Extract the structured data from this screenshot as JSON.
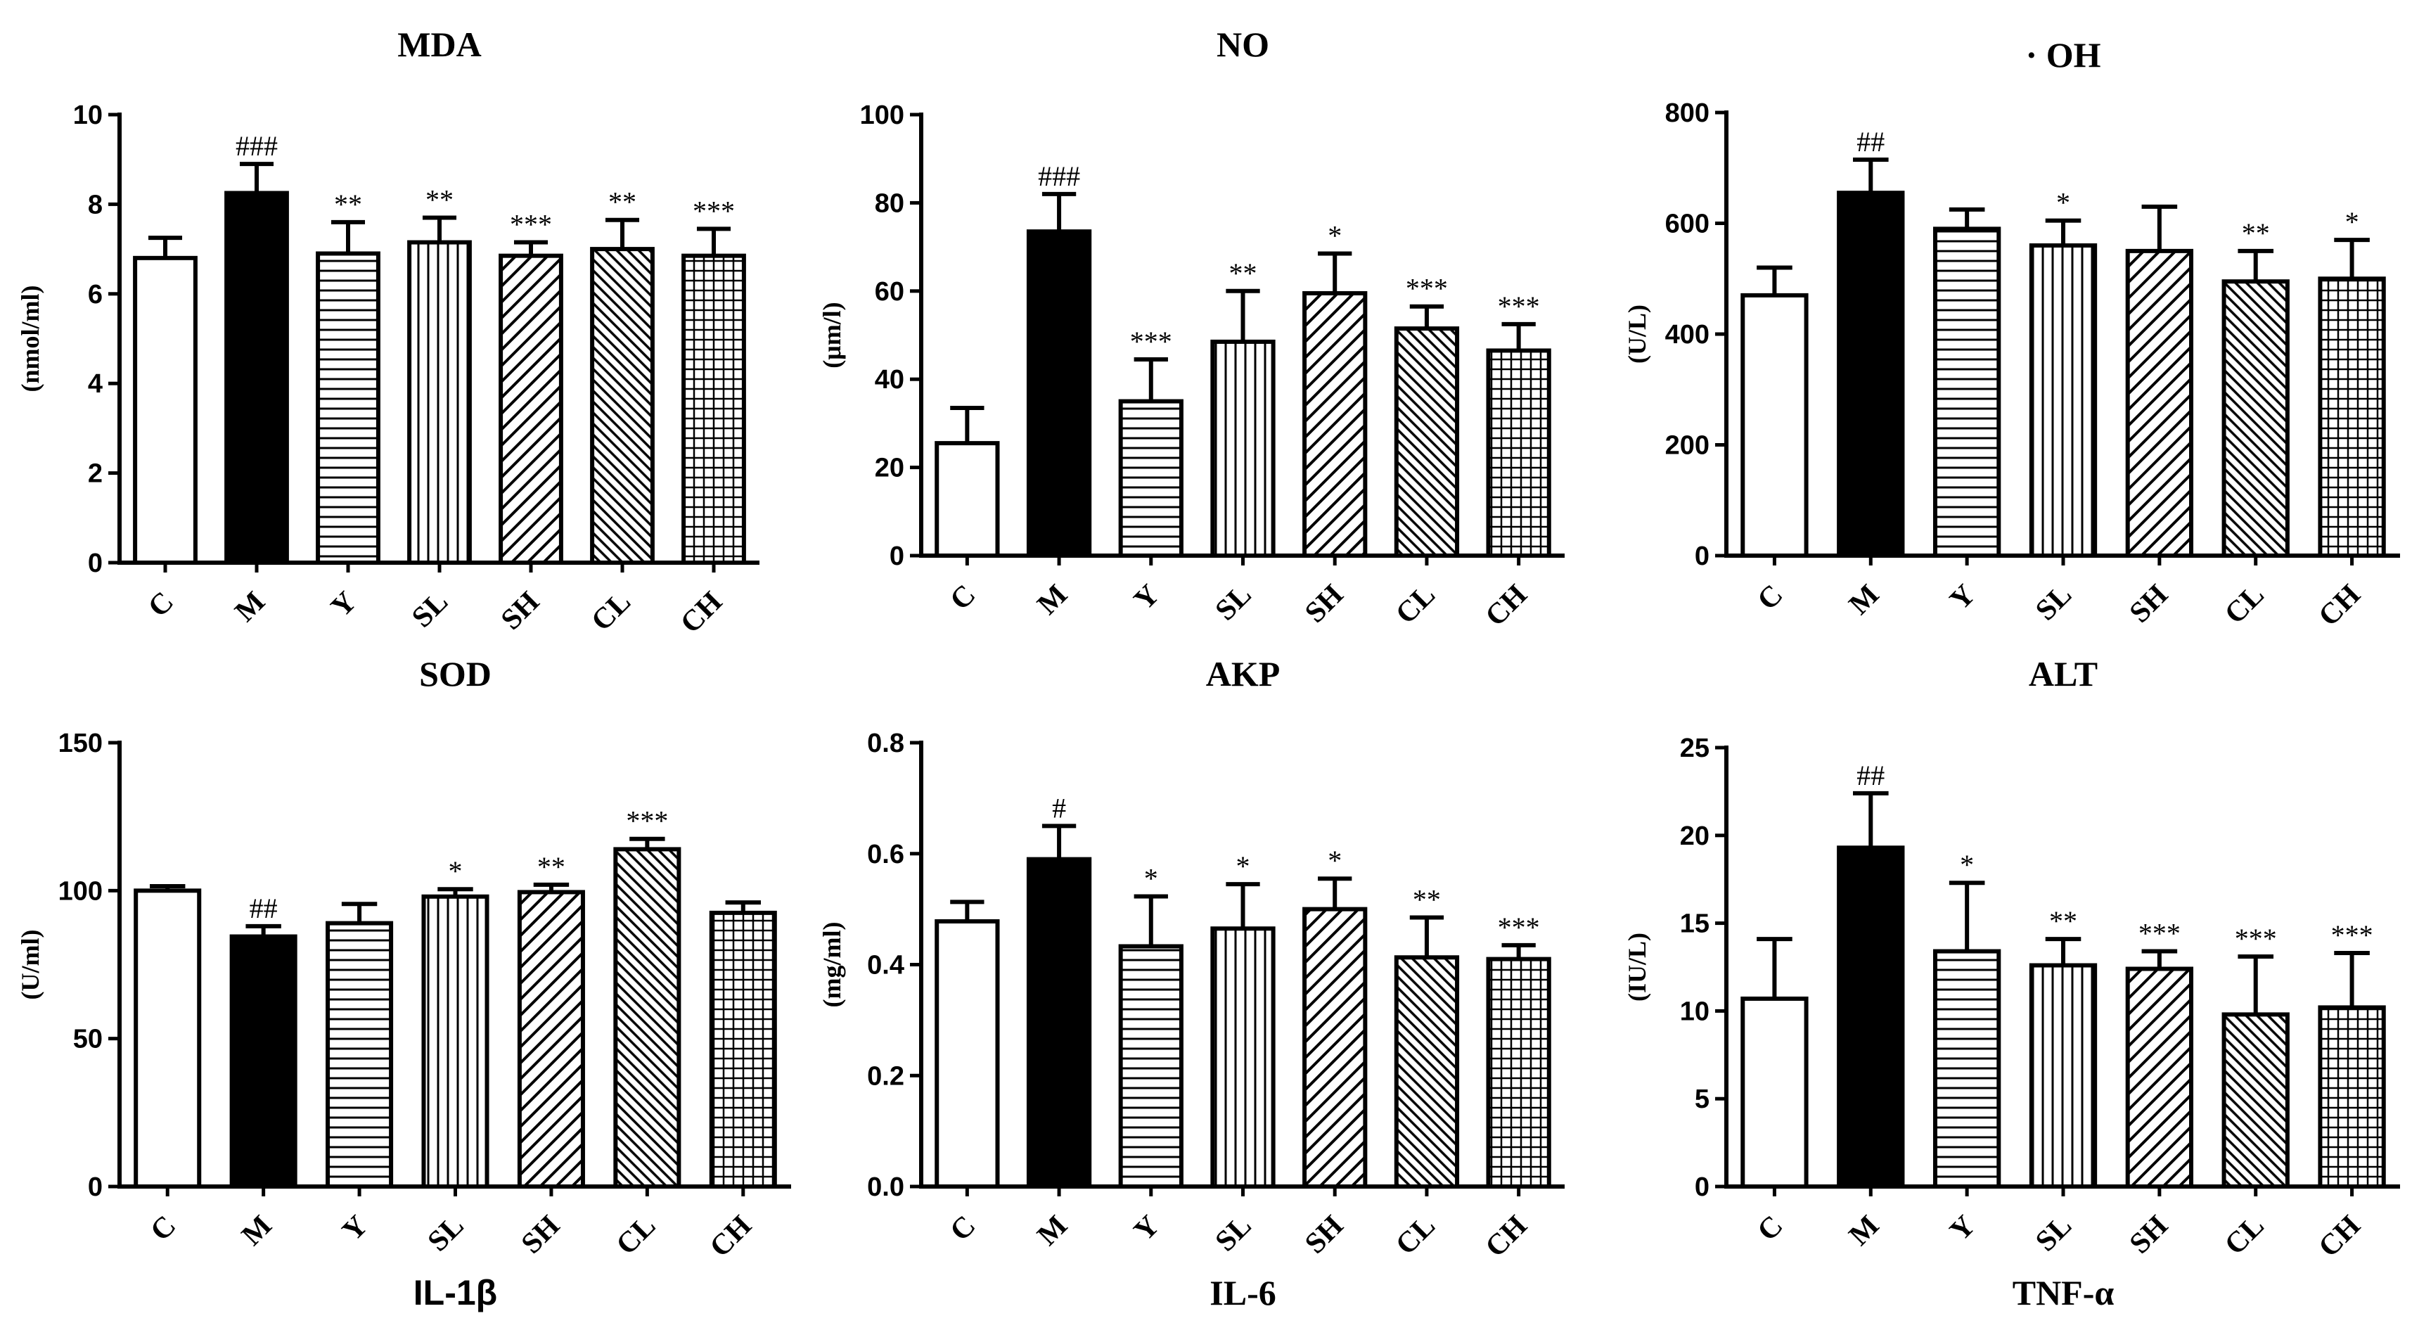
{
  "chart_data": [
    {
      "type": "bar",
      "title": "MDA",
      "ylabel": "(nmol/ml)",
      "ylim": [
        0,
        10
      ],
      "yticks": [
        0,
        2,
        4,
        6,
        8,
        10
      ],
      "categories": [
        "C",
        "M",
        "Y",
        "SL",
        "SH",
        "CL",
        "CH"
      ],
      "values": [
        6.8,
        8.25,
        6.9,
        7.15,
        6.85,
        7.0,
        6.85
      ],
      "errors": [
        0.45,
        0.65,
        0.7,
        0.55,
        0.3,
        0.65,
        0.6
      ],
      "annotations": [
        "",
        "###",
        "**",
        "**",
        "***",
        "**",
        "***"
      ]
    },
    {
      "type": "bar",
      "title": "NO",
      "ylabel": "(μm/l)",
      "ylim": [
        0,
        100
      ],
      "yticks": [
        0,
        20,
        40,
        60,
        80,
        100
      ],
      "categories": [
        "C",
        "M",
        "Y",
        "SL",
        "SH",
        "CL",
        "CH"
      ],
      "values": [
        25.5,
        73.5,
        35,
        48.5,
        59.5,
        51.5,
        46.5
      ],
      "errors": [
        8,
        8.5,
        9.5,
        11.5,
        9,
        5,
        6
      ],
      "annotations": [
        "",
        "###",
        "***",
        "**",
        "*",
        "***",
        "***"
      ]
    },
    {
      "type": "bar",
      "title": "· OH",
      "ylabel": "(U/L)",
      "ylim": [
        0,
        800
      ],
      "yticks": [
        0,
        200,
        400,
        600,
        800
      ],
      "categories": [
        "C",
        "M",
        "Y",
        "SL",
        "SH",
        "CL",
        "CH"
      ],
      "values": [
        470,
        655,
        590,
        560,
        550,
        495,
        500
      ],
      "errors": [
        50,
        60,
        35,
        45,
        80,
        55,
        70
      ],
      "annotations": [
        "",
        "##",
        "",
        "*",
        "",
        "**",
        "*"
      ]
    },
    {
      "type": "bar",
      "title": "SOD",
      "ylabel": "(U/ml)",
      "ylim": [
        0,
        150
      ],
      "yticks": [
        0,
        50,
        100,
        150
      ],
      "categories": [
        "C",
        "M",
        "Y",
        "SL",
        "SH",
        "CL",
        "CH"
      ],
      "values": [
        100,
        84.5,
        89,
        98,
        99.5,
        114,
        92.5
      ],
      "errors": [
        1.5,
        3.5,
        6.5,
        2.5,
        2.5,
        3.5,
        3.5
      ],
      "annotations": [
        "",
        "##",
        "",
        "*",
        "**",
        "***",
        ""
      ],
      "footer": "IL-1β"
    },
    {
      "type": "bar",
      "title": "AKP",
      "ylabel": "(mg/ml)",
      "ylim": [
        0,
        0.8
      ],
      "yticks": [
        "0.0",
        "0.2",
        "0.4",
        "0.6",
        "0.8"
      ],
      "categories": [
        "C",
        "M",
        "Y",
        "SL",
        "SH",
        "CL",
        "CH"
      ],
      "values": [
        0.478,
        0.59,
        0.433,
        0.465,
        0.5,
        0.413,
        0.41
      ],
      "errors": [
        0.035,
        0.06,
        0.09,
        0.08,
        0.055,
        0.072,
        0.025
      ],
      "annotations": [
        "",
        "#",
        "*",
        "*",
        "*",
        "**",
        "***"
      ],
      "footer": "IL-6"
    },
    {
      "type": "bar",
      "title": "ALT",
      "ylabel": "(IU/L)",
      "ylim": [
        0,
        25
      ],
      "yticks": [
        0,
        5,
        10,
        15,
        20,
        25
      ],
      "categories": [
        "C",
        "M",
        "Y",
        "SL",
        "SH",
        "CL",
        "CH"
      ],
      "values": [
        10.7,
        19.3,
        13.4,
        12.6,
        12.4,
        9.8,
        10.2
      ],
      "errors": [
        3.4,
        3.1,
        3.9,
        1.5,
        1.0,
        3.3,
        3.1
      ],
      "annotations": [
        "",
        "##",
        "*",
        "**",
        "***",
        "***",
        "***"
      ],
      "footer": "TNF-α"
    }
  ],
  "patterns": [
    "white",
    "black",
    "hlines",
    "vlines",
    "diag-wide",
    "diag-dense",
    "grid"
  ],
  "colors": {
    "ink": "#000000",
    "paper": "#ffffff"
  }
}
